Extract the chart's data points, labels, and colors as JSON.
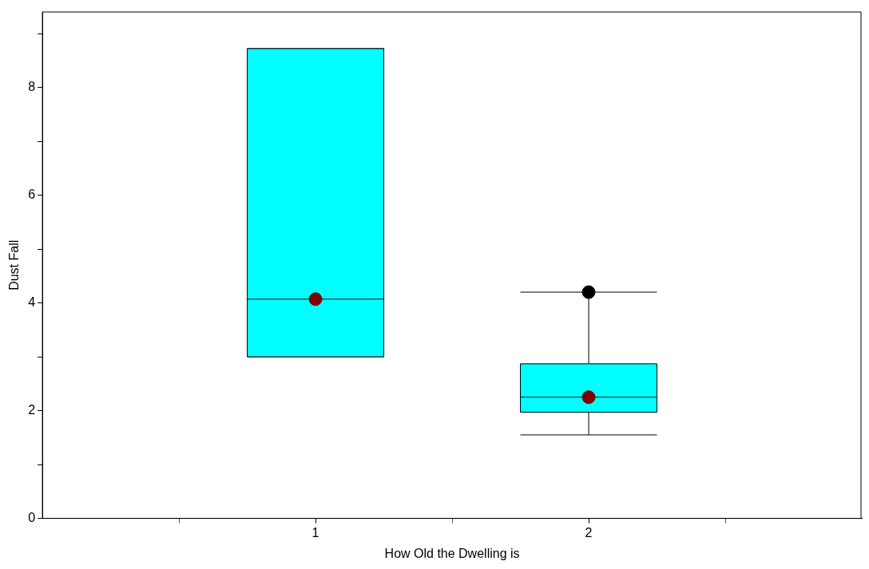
{
  "chart_data": {
    "type": "box",
    "xlabel": "How Old the Dwelling is",
    "ylabel": "Dust Fall",
    "categories": [
      "1",
      "2"
    ],
    "boxes": [
      {
        "low": 3.0,
        "q1": 3.0,
        "median": 4.07,
        "q3": 8.72,
        "high": 8.72,
        "mean": 4.07
      },
      {
        "low": 1.55,
        "q1": 1.97,
        "median": 2.25,
        "q3": 2.87,
        "high": 4.2,
        "mean": 2.25,
        "outliers": [
          4.2
        ]
      }
    ],
    "color": "#00ffff",
    "ylim": [
      0,
      9.4
    ],
    "yticks": [
      0,
      {
        "value": 1,
        "label": null
      },
      2,
      {
        "value": 3,
        "label": null
      },
      4,
      {
        "value": 5,
        "label": null
      },
      6,
      {
        "value": 7,
        "label": null
      },
      8,
      {
        "value": 9,
        "label": null
      }
    ]
  }
}
